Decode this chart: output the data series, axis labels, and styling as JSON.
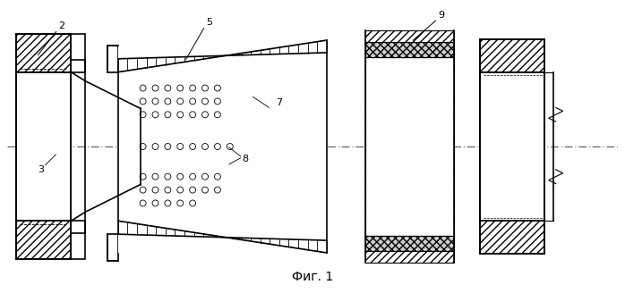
{
  "fig_width": 6.98,
  "fig_height": 3.28,
  "dpi": 100,
  "bg_color": "#ffffff",
  "line_color": "#000000",
  "title": "Фиг. 1",
  "title_fontsize": 10,
  "label_2": "2",
  "label_3": "3",
  "label_5": "5",
  "label_7": "7",
  "label_8": "8",
  "label_9": "9"
}
